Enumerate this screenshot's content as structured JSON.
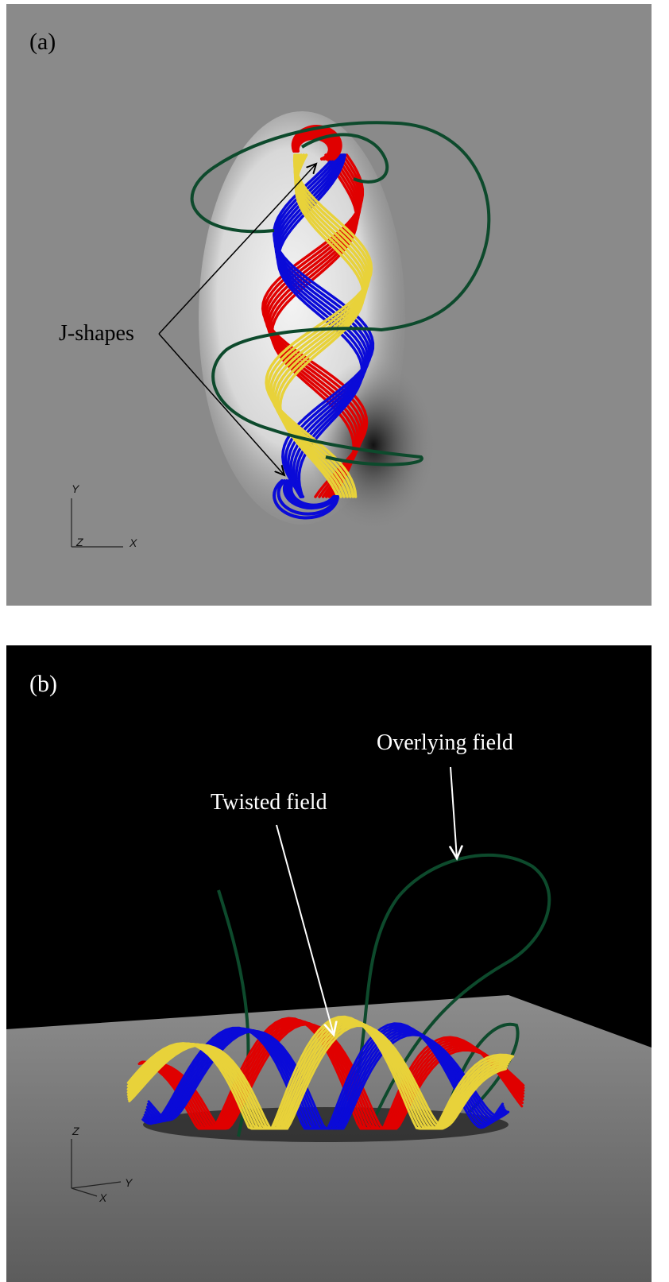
{
  "panels": [
    {
      "label": "(a)",
      "annotations": [
        "J-shapes"
      ],
      "axes": {
        "vertical": "Y",
        "depth": "Z",
        "horizontal": "X"
      }
    },
    {
      "label": "(b)",
      "annotations": [
        "Twisted field",
        "Overlying field"
      ],
      "axes": {
        "vertical": "Z",
        "horizontal": "Y",
        "depth": "X"
      }
    }
  ]
}
